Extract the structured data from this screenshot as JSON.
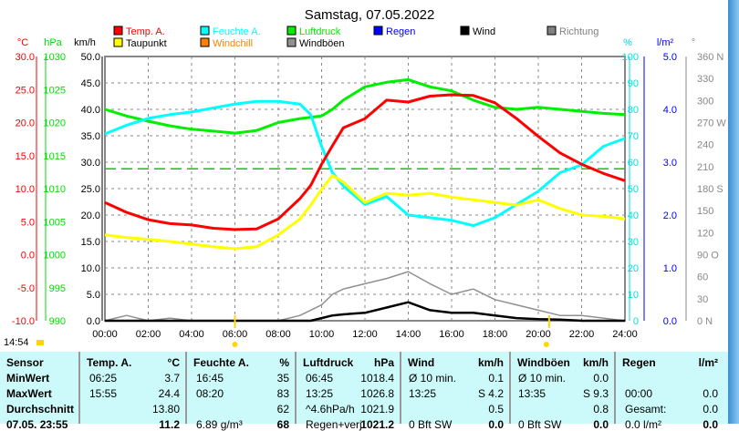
{
  "title": "Samstag, 07.05.2022",
  "now_time": "14:54",
  "colors": {
    "temp": "#ff0000",
    "dew": "#ffff00",
    "hum": "#00ffff",
    "press": "#00ee00",
    "wind": "#000000",
    "gust": "#909090",
    "dir": "#808080",
    "rain": "#0000ff",
    "chill": "#ff8000"
  },
  "chart_data": {
    "type": "line",
    "title": "Samstag, 07.05.2022",
    "legend": [
      {
        "name": "Temp. A.",
        "color": "#ff0000"
      },
      {
        "name": "Feuchte A.",
        "color": "#00ffff"
      },
      {
        "name": "Luftdruck",
        "color": "#00ee00"
      },
      {
        "name": "Regen",
        "color": "#0000ff"
      },
      {
        "name": "Wind",
        "color": "#000000"
      },
      {
        "name": "Richtung",
        "color": "#808080"
      },
      {
        "name": "Taupunkt",
        "color": "#ffff00"
      },
      {
        "name": "Windchill",
        "color": "#ff8000"
      },
      {
        "name": "Windböen",
        "color": "#909090"
      }
    ],
    "axes": {
      "temp": {
        "unit": "°C",
        "ticks": [
          "30.0",
          "25.0",
          "20.0",
          "15.0",
          "10.0",
          "5.0",
          "0.0",
          "-5.0",
          "-10.0"
        ],
        "range": [
          -10,
          30
        ]
      },
      "press": {
        "unit": "hPa",
        "ticks": [
          "1030",
          "1025",
          "1020",
          "1015",
          "1010",
          "1005",
          "1000",
          "995",
          "990"
        ],
        "range": [
          990,
          1030
        ]
      },
      "wind": {
        "unit": "km/h",
        "ticks": [
          "50.0",
          "45.0",
          "40.0",
          "35.0",
          "30.0",
          "25.0",
          "20.0",
          "15.0",
          "10.0",
          "5.0",
          "0.0"
        ],
        "range": [
          0,
          50
        ]
      },
      "hum": {
        "unit": "%",
        "ticks": [
          "100",
          "90",
          "80",
          "70",
          "60",
          "50",
          "40",
          "30",
          "20",
          "10",
          "0"
        ],
        "range": [
          0,
          100
        ]
      },
      "rain": {
        "unit": "l/m²",
        "ticks": [
          "5.0",
          "4.0",
          "3.0",
          "2.0",
          "1.0",
          "0.0"
        ],
        "range": [
          0,
          5
        ]
      },
      "dir": {
        "unit": "°",
        "ticks": [
          "360 N",
          "330",
          "300",
          "270 W",
          "240",
          "210",
          "180 S",
          "150",
          "120",
          "90 O",
          "60",
          "30",
          "0 N"
        ]
      },
      "x": {
        "ticks": [
          "00:00",
          "02:00",
          "04:00",
          "06:00",
          "08:00",
          "10:00",
          "12:00",
          "14:00",
          "16:00",
          "18:00",
          "20:00",
          "22:00",
          "24:00"
        ],
        "range": [
          0,
          24
        ]
      }
    },
    "x": [
      0,
      1,
      2,
      3,
      4,
      5,
      6,
      7,
      8,
      9,
      9.5,
      10,
      10.5,
      11,
      12,
      13,
      14,
      15,
      16,
      17,
      18,
      19,
      20,
      21,
      22,
      23,
      24
    ],
    "series": [
      {
        "name": "Temp. A.",
        "values": [
          7.9,
          6.4,
          5.3,
          4.7,
          4.5,
          4.0,
          3.8,
          3.9,
          5.4,
          8.5,
          10.5,
          13.7,
          16.5,
          19.2,
          20.6,
          23.4,
          23.1,
          24.0,
          24.2,
          24.1,
          23.0,
          20.6,
          17.9,
          15.4,
          13.7,
          12.3,
          11.2
        ]
      },
      {
        "name": "Taupunkt",
        "values": [
          3.0,
          2.6,
          2.3,
          2.0,
          1.6,
          1.2,
          0.9,
          1.2,
          3.0,
          5.4,
          7.5,
          9.9,
          12.0,
          11.0,
          7.9,
          9.3,
          9.0,
          9.3,
          8.7,
          8.3,
          7.9,
          7.5,
          8.3,
          7.0,
          6.0,
          5.8,
          5.4
        ]
      },
      {
        "name": "Feuchte A.",
        "values": [
          70.7,
          74,
          76.6,
          78,
          79,
          80.5,
          82,
          83,
          83,
          82,
          78,
          66,
          56,
          51,
          44,
          47,
          40,
          39,
          38,
          36,
          39,
          44,
          49,
          56,
          59,
          66,
          69
        ]
      },
      {
        "name": "Luftdruck",
        "values": [
          1022,
          1021,
          1020.2,
          1019.5,
          1019,
          1018.7,
          1018.4,
          1018.8,
          1020,
          1020.6,
          1020.8,
          1021,
          1022,
          1023.4,
          1025.4,
          1026.1,
          1026.5,
          1025.4,
          1024.8,
          1023.4,
          1022.3,
          1022,
          1022.3,
          1022,
          1021.7,
          1021.4,
          1021.2
        ]
      },
      {
        "name": "Wind",
        "values": [
          0,
          0,
          0,
          0,
          0,
          0,
          0,
          0,
          0,
          0,
          0,
          0.5,
          1,
          1.2,
          1.5,
          2.5,
          3.5,
          2,
          1.5,
          1.5,
          1,
          0.5,
          0.3,
          0.2,
          0,
          0,
          0
        ]
      },
      {
        "name": "Windböen",
        "values": [
          0,
          1,
          0,
          0.5,
          0,
          0,
          0,
          0,
          0,
          1,
          2,
          3,
          5,
          6,
          7,
          8,
          9.3,
          7,
          5,
          6,
          4,
          3,
          2,
          1,
          1,
          0.5,
          0
        ]
      }
    ],
    "reference_line_hPa": 1013
  },
  "table": {
    "headers": [
      {
        "l": "Sensor",
        "u": ""
      },
      {
        "l": "Temp. A.",
        "u": "°C"
      },
      {
        "l": "Feuchte A.",
        "u": "%"
      },
      {
        "l": "Luftdruck",
        "u": "hPa"
      },
      {
        "l": "Wind",
        "u": "km/h"
      },
      {
        "l": "Windböen",
        "u": "km/h"
      },
      {
        "l": "Regen",
        "u": "l/m²"
      }
    ],
    "rows": [
      {
        "label": "MinWert",
        "cells": [
          [
            "06:25",
            "3.7"
          ],
          [
            "16:45",
            "35"
          ],
          [
            "06:45",
            "1018.4"
          ],
          [
            "Ø 10 min.",
            "0.1"
          ],
          [
            "Ø 10 min.",
            "0.0"
          ],
          [
            "",
            ""
          ]
        ]
      },
      {
        "label": "MaxWert",
        "cells": [
          [
            "15:55",
            "24.4"
          ],
          [
            "08:20",
            "83"
          ],
          [
            "13:25",
            "1026.8"
          ],
          [
            "13:25",
            "S 4.2"
          ],
          [
            "13:35",
            "S 9.3"
          ],
          [
            "00:00",
            "0.0"
          ]
        ]
      },
      {
        "label": "Durchschnitt",
        "cells": [
          [
            "",
            "13.80"
          ],
          [
            "",
            "62"
          ],
          [
            "^4.6hPa/h",
            "1021.9"
          ],
          [
            "",
            "0.5"
          ],
          [
            "",
            "0.8"
          ],
          [
            "Gesamt:",
            "0.0"
          ]
        ]
      },
      {
        "label": "07.05. 23:55",
        "cells": [
          [
            "",
            "11.2"
          ],
          [
            "6.89 g/m³",
            "68"
          ],
          [
            "Regen+verj.",
            "1021.2"
          ],
          [
            "0 Bft SW",
            "0.0"
          ],
          [
            "0 Bft SW",
            "0.0"
          ],
          [
            "0.0 l/m²",
            "0.0"
          ]
        ]
      }
    ]
  }
}
